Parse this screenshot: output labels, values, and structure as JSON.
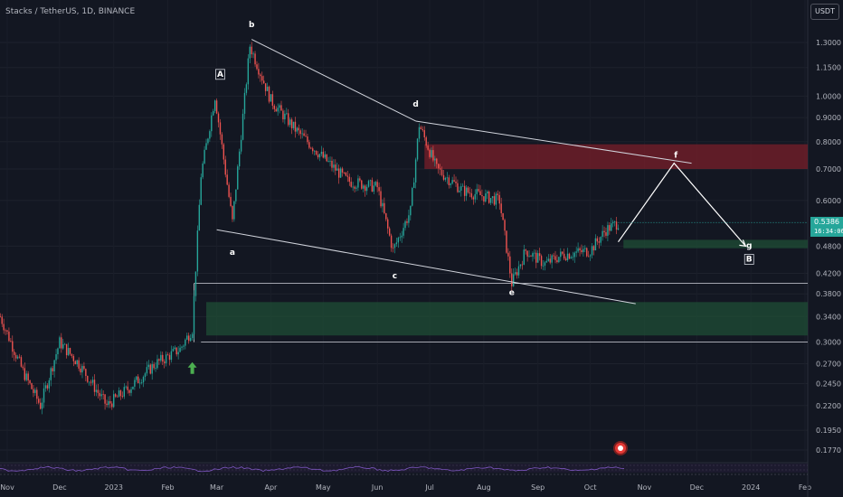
{
  "header": {
    "symbol_title": "Stacks / TetherUS, 1D, BINANCE",
    "currency_button": "USDT"
  },
  "last_price": {
    "value": "0.5386",
    "countdown": "16:34:06"
  },
  "colors": {
    "background": "#131722",
    "bull": "#26a69a",
    "bear": "#ef5350",
    "resistance_zone": "#7a1f2a",
    "support_zone": "#1f4d35",
    "indicator": "#7e57c2"
  },
  "chart_data": {
    "type": "candlestick",
    "title": "Stacks / TetherUS, 1D, BINANCE",
    "y_scale": "log",
    "y_ticks": [
      "1.3000",
      "1.1500",
      "1.0000",
      "0.9000",
      "0.8000",
      "0.7000",
      "0.6000",
      "0.4800",
      "0.4200",
      "0.3800",
      "0.3400",
      "0.3000",
      "0.2700",
      "0.2450",
      "0.2200",
      "0.1950",
      "0.1770"
    ],
    "x_ticks": [
      "Nov",
      "Dec",
      "2023",
      "Feb",
      "Mar",
      "Apr",
      "May",
      "Jun",
      "Jul",
      "Aug",
      "Sep",
      "Oct",
      "Nov",
      "Dec",
      "2024",
      "Feb"
    ],
    "price_path": [
      {
        "date": "2022-10-28",
        "price": 0.34
      },
      {
        "date": "2022-11-10",
        "price": 0.26
      },
      {
        "date": "2022-11-20",
        "price": 0.22
      },
      {
        "date": "2022-12-01",
        "price": 0.3
      },
      {
        "date": "2022-12-12",
        "price": 0.27
      },
      {
        "date": "2022-12-28",
        "price": 0.22
      },
      {
        "date": "2023-01-10",
        "price": 0.24
      },
      {
        "date": "2023-01-25",
        "price": 0.27
      },
      {
        "date": "2023-02-08",
        "price": 0.29
      },
      {
        "date": "2023-02-15",
        "price": 0.32
      },
      {
        "date": "2023-02-20",
        "price": 0.68
      },
      {
        "date": "2023-02-28",
        "price": 1.0
      },
      {
        "date": "2023-03-10",
        "price": 0.54
      },
      {
        "date": "2023-03-20",
        "price": 1.28
      },
      {
        "date": "2023-04-01",
        "price": 0.98
      },
      {
        "date": "2023-04-15",
        "price": 0.85
      },
      {
        "date": "2023-05-01",
        "price": 0.74
      },
      {
        "date": "2023-05-15",
        "price": 0.66
      },
      {
        "date": "2023-06-01",
        "price": 0.64
      },
      {
        "date": "2023-06-10",
        "price": 0.47
      },
      {
        "date": "2023-06-20",
        "price": 0.57
      },
      {
        "date": "2023-06-25",
        "price": 0.87
      },
      {
        "date": "2023-07-05",
        "price": 0.7
      },
      {
        "date": "2023-07-20",
        "price": 0.63
      },
      {
        "date": "2023-08-10",
        "price": 0.6
      },
      {
        "date": "2023-08-17",
        "price": 0.4
      },
      {
        "date": "2023-08-25",
        "price": 0.47
      },
      {
        "date": "2023-09-05",
        "price": 0.44
      },
      {
        "date": "2023-09-15",
        "price": 0.46
      },
      {
        "date": "2023-10-01",
        "price": 0.47
      },
      {
        "date": "2023-10-10",
        "price": 0.52
      },
      {
        "date": "2023-10-17",
        "price": 0.5386
      }
    ],
    "wave_labels": [
      {
        "label": "A",
        "date": "2023-03-03",
        "price": 1.1,
        "boxed": true
      },
      {
        "label": "a",
        "date": "2023-03-10",
        "price": 0.46
      },
      {
        "label": "b",
        "date": "2023-03-21",
        "price": 1.4
      },
      {
        "label": "c",
        "date": "2023-06-11",
        "price": 0.41
      },
      {
        "label": "d",
        "date": "2023-06-23",
        "price": 0.95
      },
      {
        "label": "e",
        "date": "2023-08-17",
        "price": 0.378
      },
      {
        "label": "f",
        "date": "2023-11-19",
        "price": 0.74
      },
      {
        "label": "g",
        "date": "2023-12-31",
        "price": 0.475
      },
      {
        "label": "B",
        "date": "2023-12-31",
        "price": 0.445,
        "boxed": true
      }
    ],
    "trendlines": [
      {
        "from": {
          "date": "2023-03-21",
          "price": 1.32
        },
        "to": {
          "date": "2023-06-23",
          "price": 0.885
        }
      },
      {
        "from": {
          "date": "2023-06-23",
          "price": 0.885
        },
        "to": {
          "date": "2023-11-28",
          "price": 0.72
        }
      },
      {
        "from": {
          "date": "2023-03-01",
          "price": 0.52
        },
        "to": {
          "date": "2023-10-27",
          "price": 0.362
        }
      }
    ],
    "projection": [
      {
        "date": "2023-10-17",
        "price": 0.49
      },
      {
        "date": "2023-11-18",
        "price": 0.72
      },
      {
        "date": "2023-12-29",
        "price": 0.48
      }
    ],
    "zones": [
      {
        "kind": "resistance",
        "from": "2023-06-28",
        "price_low": 0.7,
        "price_high": 0.79
      },
      {
        "kind": "support",
        "from": "2023-10-20",
        "price_low": 0.475,
        "price_high": 0.495
      },
      {
        "kind": "support",
        "from": "2023-02-23",
        "price_low": 0.31,
        "price_high": 0.365
      }
    ],
    "horizontal_lines": [
      {
        "from": "2023-02-16",
        "price": 0.4
      },
      {
        "from": "2023-02-20",
        "price": 0.3
      }
    ],
    "markers": [
      {
        "kind": "up-arrow",
        "date": "2023-02-15",
        "price": 0.265
      }
    ]
  }
}
